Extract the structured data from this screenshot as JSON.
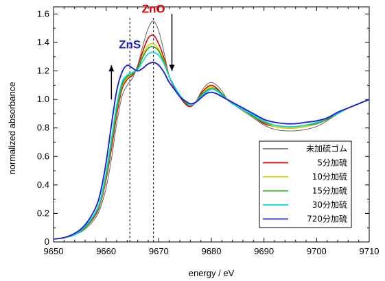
{
  "chart_data": {
    "type": "line",
    "xlabel": "energy / eV",
    "ylabel": "normalized absorbance",
    "xlim": [
      9650,
      9710
    ],
    "ylim": [
      0,
      1.65
    ],
    "x_ticks": [
      "9650",
      "9660",
      "9670",
      "9680",
      "9690",
      "9700",
      "9710"
    ],
    "y_ticks": [
      "0",
      "0.2",
      "0.4",
      "0.6",
      "0.8",
      "1.0",
      "1.2",
      "1.4",
      "1.6"
    ],
    "grid": false,
    "legend_position": "bottom-right",
    "annotations": [
      {
        "text": "ZnO",
        "color": "#e00000",
        "x": 9669,
        "y": 1.61
      },
      {
        "text": "ZnS",
        "color": "#1f1fd0",
        "x": 9664.5,
        "y": 1.36
      }
    ],
    "reference_lines_x": [
      9664.5,
      9669
    ],
    "arrows": [
      {
        "direction": "up",
        "x": 9661,
        "y_from": 1.0,
        "y_to": 1.24
      },
      {
        "direction": "down",
        "x": 9672.5,
        "y_from": 1.6,
        "y_to": 1.2
      }
    ],
    "series": [
      {
        "name": "未加硫ゴム",
        "color": "#707070",
        "x": [
          9650,
          9652,
          9654,
          9656,
          9658,
          9659,
          9660,
          9661,
          9662,
          9663,
          9664,
          9665,
          9666,
          9667,
          9668,
          9669,
          9670,
          9671,
          9672,
          9673,
          9674,
          9675,
          9676,
          9677,
          9678,
          9679,
          9680,
          9681,
          9682,
          9683,
          9684,
          9686,
          9688,
          9690,
          9692,
          9694,
          9696,
          9698,
          9700,
          9702,
          9704,
          9706,
          9708,
          9710
        ],
        "y": [
          0.02,
          0.03,
          0.05,
          0.09,
          0.17,
          0.25,
          0.38,
          0.58,
          0.83,
          1.02,
          1.1,
          1.15,
          1.24,
          1.38,
          1.5,
          1.55,
          1.48,
          1.33,
          1.16,
          1.08,
          1.02,
          0.97,
          0.95,
          0.98,
          1.05,
          1.1,
          1.12,
          1.1,
          1.06,
          1.0,
          0.97,
          0.92,
          0.87,
          0.82,
          0.79,
          0.78,
          0.78,
          0.79,
          0.81,
          0.85,
          0.9,
          0.94,
          0.97,
          1.0
        ]
      },
      {
        "name": "5分加硫",
        "color": "#e00000",
        "x": [
          9650,
          9652,
          9654,
          9656,
          9658,
          9659,
          9660,
          9661,
          9662,
          9663,
          9664,
          9665,
          9666,
          9667,
          9668,
          9669,
          9670,
          9671,
          9672,
          9673,
          9674,
          9675,
          9676,
          9677,
          9678,
          9679,
          9680,
          9681,
          9682,
          9683,
          9684,
          9686,
          9688,
          9690,
          9692,
          9694,
          9696,
          9698,
          9700,
          9702,
          9704,
          9706,
          9708,
          9710
        ],
        "y": [
          0.02,
          0.03,
          0.05,
          0.1,
          0.19,
          0.28,
          0.44,
          0.65,
          0.89,
          1.07,
          1.14,
          1.17,
          1.23,
          1.34,
          1.43,
          1.45,
          1.39,
          1.29,
          1.16,
          1.08,
          1.02,
          0.97,
          0.95,
          0.98,
          1.04,
          1.08,
          1.1,
          1.08,
          1.04,
          1.0,
          0.97,
          0.93,
          0.88,
          0.83,
          0.81,
          0.8,
          0.8,
          0.81,
          0.83,
          0.86,
          0.9,
          0.94,
          0.97,
          1.0
        ]
      },
      {
        "name": "10分加硫",
        "color": "#d8d800",
        "x": [
          9650,
          9652,
          9654,
          9656,
          9658,
          9659,
          9660,
          9661,
          9662,
          9663,
          9664,
          9665,
          9666,
          9667,
          9668,
          9669,
          9670,
          9671,
          9672,
          9673,
          9674,
          9675,
          9676,
          9677,
          9678,
          9679,
          9680,
          9681,
          9682,
          9683,
          9684,
          9686,
          9688,
          9690,
          9692,
          9694,
          9696,
          9698,
          9700,
          9702,
          9704,
          9706,
          9708,
          9710
        ],
        "y": [
          0.02,
          0.03,
          0.05,
          0.1,
          0.2,
          0.29,
          0.46,
          0.68,
          0.92,
          1.09,
          1.15,
          1.18,
          1.22,
          1.31,
          1.38,
          1.39,
          1.35,
          1.27,
          1.16,
          1.09,
          1.03,
          0.98,
          0.96,
          0.98,
          1.03,
          1.07,
          1.09,
          1.07,
          1.04,
          1.0,
          0.97,
          0.93,
          0.88,
          0.84,
          0.81,
          0.8,
          0.8,
          0.81,
          0.83,
          0.86,
          0.9,
          0.94,
          0.97,
          1.0
        ]
      },
      {
        "name": "15分加硫",
        "color": "#20a020",
        "x": [
          9650,
          9652,
          9654,
          9656,
          9658,
          9659,
          9660,
          9661,
          9662,
          9663,
          9664,
          9665,
          9666,
          9667,
          9668,
          9669,
          9670,
          9671,
          9672,
          9673,
          9674,
          9675,
          9676,
          9677,
          9678,
          9679,
          9680,
          9681,
          9682,
          9683,
          9684,
          9686,
          9688,
          9690,
          9692,
          9694,
          9696,
          9698,
          9700,
          9702,
          9704,
          9706,
          9708,
          9710
        ],
        "y": [
          0.02,
          0.03,
          0.05,
          0.1,
          0.2,
          0.3,
          0.47,
          0.69,
          0.93,
          1.1,
          1.16,
          1.18,
          1.22,
          1.3,
          1.36,
          1.37,
          1.34,
          1.26,
          1.16,
          1.09,
          1.03,
          0.98,
          0.96,
          0.98,
          1.03,
          1.06,
          1.08,
          1.07,
          1.04,
          1.0,
          0.97,
          0.93,
          0.88,
          0.84,
          0.82,
          0.81,
          0.81,
          0.82,
          0.83,
          0.86,
          0.9,
          0.94,
          0.97,
          1.0
        ]
      },
      {
        "name": "30分加硫",
        "color": "#00d8e8",
        "x": [
          9650,
          9652,
          9654,
          9656,
          9658,
          9659,
          9660,
          9661,
          9662,
          9663,
          9664,
          9665,
          9666,
          9667,
          9668,
          9669,
          9670,
          9671,
          9672,
          9673,
          9674,
          9675,
          9676,
          9677,
          9678,
          9679,
          9680,
          9681,
          9682,
          9683,
          9684,
          9686,
          9688,
          9690,
          9692,
          9694,
          9696,
          9698,
          9700,
          9702,
          9704,
          9706,
          9708,
          9710
        ],
        "y": [
          0.02,
          0.03,
          0.05,
          0.11,
          0.21,
          0.31,
          0.49,
          0.72,
          0.96,
          1.12,
          1.17,
          1.19,
          1.21,
          1.27,
          1.32,
          1.33,
          1.31,
          1.25,
          1.16,
          1.09,
          1.03,
          0.99,
          0.96,
          0.98,
          1.02,
          1.05,
          1.07,
          1.06,
          1.03,
          1.0,
          0.97,
          0.93,
          0.89,
          0.85,
          0.82,
          0.81,
          0.81,
          0.82,
          0.84,
          0.87,
          0.9,
          0.94,
          0.97,
          1.0
        ]
      },
      {
        "name": "720分加硫",
        "color": "#1f1fd0",
        "x": [
          9650,
          9652,
          9654,
          9656,
          9658,
          9659,
          9660,
          9661,
          9662,
          9663,
          9664,
          9665,
          9666,
          9667,
          9668,
          9669,
          9670,
          9671,
          9672,
          9673,
          9674,
          9675,
          9676,
          9677,
          9678,
          9679,
          9680,
          9681,
          9682,
          9683,
          9684,
          9686,
          9688,
          9690,
          9692,
          9694,
          9696,
          9698,
          9700,
          9702,
          9704,
          9706,
          9708,
          9710
        ],
        "y": [
          0.02,
          0.03,
          0.06,
          0.12,
          0.24,
          0.36,
          0.56,
          0.82,
          1.06,
          1.19,
          1.24,
          1.22,
          1.2,
          1.22,
          1.25,
          1.26,
          1.24,
          1.19,
          1.12,
          1.07,
          1.02,
          0.99,
          0.97,
          0.98,
          1.01,
          1.04,
          1.05,
          1.04,
          1.02,
          1.0,
          0.98,
          0.94,
          0.9,
          0.86,
          0.84,
          0.83,
          0.83,
          0.84,
          0.85,
          0.87,
          0.91,
          0.94,
          0.97,
          1.0
        ]
      }
    ]
  }
}
